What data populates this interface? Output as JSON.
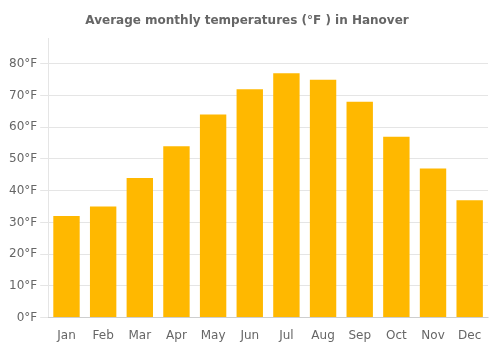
{
  "chart_data": {
    "type": "bar",
    "title": "Average monthly temperatures (°F ) in Hanover",
    "categories": [
      "Jan",
      "Feb",
      "Mar",
      "Apr",
      "May",
      "Jun",
      "Jul",
      "Aug",
      "Sep",
      "Oct",
      "Nov",
      "Dec"
    ],
    "values": [
      32,
      35,
      44,
      54,
      64,
      72,
      77,
      75,
      68,
      57,
      47,
      37
    ],
    "color": "#FFB800",
    "ylim": [
      0,
      88
    ],
    "yticks": [
      {
        "value": 0,
        "label": "0°F"
      },
      {
        "value": 10,
        "label": "10°F"
      },
      {
        "value": 20,
        "label": "20°F"
      },
      {
        "value": 30,
        "label": "30°F"
      },
      {
        "value": 40,
        "label": "40°F"
      },
      {
        "value": 50,
        "label": "50°F"
      },
      {
        "value": 60,
        "label": "60°F"
      },
      {
        "value": 70,
        "label": "70°F"
      },
      {
        "value": 80,
        "label": "80°F"
      }
    ],
    "grid": true
  }
}
